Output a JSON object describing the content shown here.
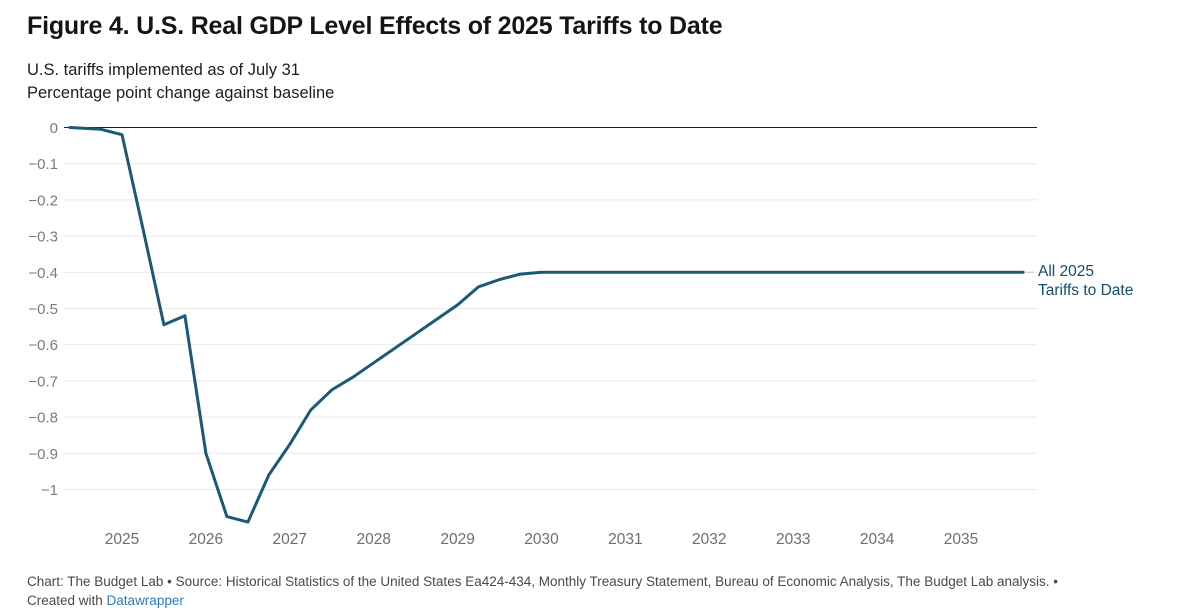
{
  "header": {
    "title": "Figure 4. U.S. Real GDP Level Effects of 2025 Tariffs to Date",
    "subtitle_line1": "U.S. tariffs implemented as of July 31",
    "subtitle_line2": "Percentage point change against baseline"
  },
  "chart_data": {
    "type": "line",
    "title": "Figure 4. U.S. Real GDP Level Effects of 2025 Tariffs to Date",
    "subtitle": "U.S. tariffs implemented as of July 31 — Percentage point change against baseline",
    "xlabel": "",
    "ylabel": "Percentage point change against baseline",
    "x_ticks": [
      2025,
      2026,
      2027,
      2028,
      2029,
      2030,
      2031,
      2032,
      2033,
      2034,
      2035
    ],
    "y_ticks": {
      "values": [
        0,
        -0.1,
        -0.2,
        -0.3,
        -0.4,
        -0.5,
        -0.6,
        -0.7,
        -0.8,
        -0.9,
        -1
      ],
      "labels": [
        "0",
        "−0.1",
        "−0.2",
        "−0.3",
        "−0.4",
        "−0.5",
        "−0.6",
        "−0.7",
        "−0.8",
        "−0.9",
        "−1"
      ]
    },
    "xlim": [
      2024.3,
      2035.9
    ],
    "ylim": [
      -1.1,
      0.02
    ],
    "grid": true,
    "zero_line": true,
    "legend_position": "right-of-line",
    "line_color": "#1a5a73",
    "label_color": "#114e6e",
    "line_label": [
      "All 2025",
      "Tariffs to Date"
    ],
    "series": [
      {
        "name": "All 2025 Tariffs to Date",
        "points": [
          [
            2024.38,
            0.0
          ],
          [
            2024.75,
            -0.005
          ],
          [
            2025.0,
            -0.02
          ],
          [
            2025.25,
            -0.28
          ],
          [
            2025.5,
            -0.545
          ],
          [
            2025.75,
            -0.52
          ],
          [
            2026.0,
            -0.9
          ],
          [
            2026.25,
            -1.075
          ],
          [
            2026.5,
            -1.09
          ],
          [
            2026.75,
            -0.96
          ],
          [
            2027.0,
            -0.875
          ],
          [
            2027.25,
            -0.78
          ],
          [
            2027.5,
            -0.725
          ],
          [
            2027.75,
            -0.69
          ],
          [
            2028.0,
            -0.65
          ],
          [
            2028.25,
            -0.61
          ],
          [
            2028.5,
            -0.57
          ],
          [
            2028.75,
            -0.53
          ],
          [
            2029.0,
            -0.49
          ],
          [
            2029.25,
            -0.44
          ],
          [
            2029.5,
            -0.42
          ],
          [
            2029.75,
            -0.405
          ],
          [
            2030.0,
            -0.4
          ],
          [
            2031.0,
            -0.4
          ],
          [
            2032.0,
            -0.4
          ],
          [
            2033.0,
            -0.4
          ],
          [
            2034.0,
            -0.4
          ],
          [
            2035.0,
            -0.4
          ],
          [
            2035.74,
            -0.4
          ]
        ]
      }
    ]
  },
  "footer": {
    "line1": "Chart: The Budget Lab • Source: Historical Statistics of the United States Ea424-434, Monthly Treasury Statement, Bureau of Economic Analysis, The Budget Lab analysis.  •",
    "line2_prefix": "Created with ",
    "link_label": "Datawrapper"
  }
}
